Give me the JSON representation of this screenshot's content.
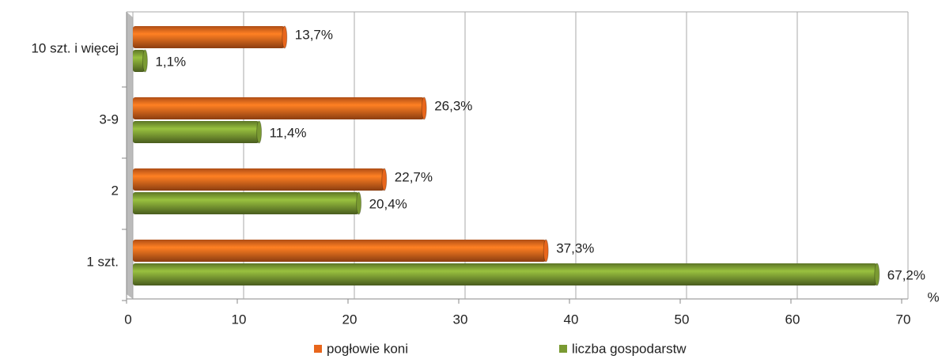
{
  "chart_data": {
    "type": "bar",
    "orientation": "horizontal",
    "categories": [
      "10 szt. i więcej",
      "3-9",
      "2",
      "1 szt."
    ],
    "series": [
      {
        "name": "pogłowie koni",
        "color": "#e8661c",
        "values": [
          13.7,
          26.3,
          22.7,
          37.3
        ],
        "value_labels": [
          "13,7%",
          "26,3%",
          "22,7%",
          "37,3%"
        ]
      },
      {
        "name": "liczba gospodarstw",
        "color": "#7a9a32",
        "values": [
          1.1,
          11.4,
          20.4,
          67.2
        ],
        "value_labels": [
          "1,1%",
          "11,4%",
          "20,4%",
          "67,2%"
        ]
      }
    ],
    "xlabel": "%",
    "xlim": [
      0,
      70
    ],
    "xticks": [
      0,
      10,
      20,
      30,
      40,
      50,
      60,
      70
    ],
    "grid": true,
    "legend": "bottom"
  }
}
